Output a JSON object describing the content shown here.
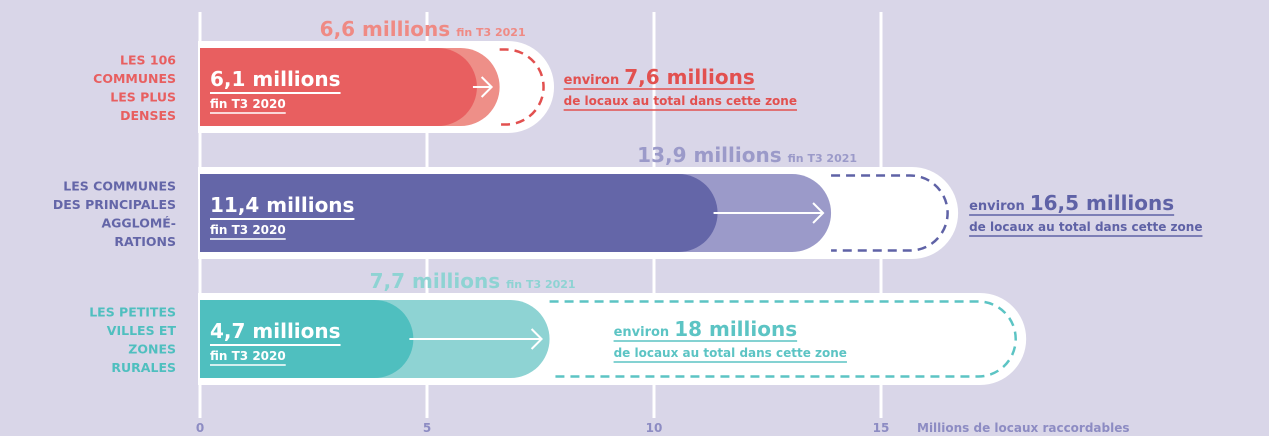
{
  "chart_data": {
    "type": "bar",
    "xlabel": "Millions de locaux raccordables",
    "xlim": [
      0,
      15
    ],
    "x_ticks": [
      0,
      5,
      10,
      15
    ],
    "x_tick_labels": [
      "0",
      "5",
      "10",
      "15"
    ],
    "grid": true,
    "series": [
      {
        "name": "fin T3 2020"
      },
      {
        "name": "fin T3 2021"
      },
      {
        "name": "de locaux au total dans cette zone"
      }
    ],
    "categories": [
      {
        "label_lines": [
          "LES 106",
          "COMMUNES",
          "LES PLUS",
          "DENSES"
        ],
        "color": "#e85f60",
        "mid_color": "#ee8f88",
        "dash_color": "#e2504f",
        "value_2020": 6.1,
        "value_2021": 6.6,
        "total": 7.6,
        "value_2020_label": "6,1 millions",
        "period_2020_label": "fin T3 2020",
        "value_2021_label": "6,6 millions",
        "period_2021_label": "fin T3 2021",
        "total_prefix": "environ",
        "total_label": "7,6 millions",
        "total_suffix": "de locaux au total dans cette zone"
      },
      {
        "label_lines": [
          "LES COMMUNES",
          "DES PRINCIPALES",
          "AGGLOMÉ-",
          "RATIONS"
        ],
        "color": "#6466a8",
        "mid_color": "#9b9ac9",
        "dash_color": "#5f62a6",
        "value_2020": 11.4,
        "value_2021": 13.9,
        "total": 16.5,
        "value_2020_label": "11,4 millions",
        "period_2020_label": "fin T3 2020",
        "value_2021_label": "13,9 millions",
        "period_2021_label": "fin T3 2021",
        "total_prefix": "environ",
        "total_label": "16,5 millions",
        "total_suffix": "de locaux au total dans cette zone"
      },
      {
        "label_lines": [
          "LES PETITES",
          "VILLES ET",
          "ZONES",
          "RURALES"
        ],
        "color": "#4fbfbf",
        "mid_color": "#8ed3d3",
        "dash_color": "#5cc4c4",
        "value_2020": 4.7,
        "value_2021": 7.7,
        "total": 18,
        "value_2020_label": "4,7 millions",
        "period_2020_label": "fin T3 2020",
        "value_2021_label": "7,7 millions",
        "period_2021_label": "fin T3 2021",
        "total_prefix": "environ",
        "total_label": "18 millions",
        "total_suffix": "de locaux au total dans cette zone"
      }
    ]
  }
}
